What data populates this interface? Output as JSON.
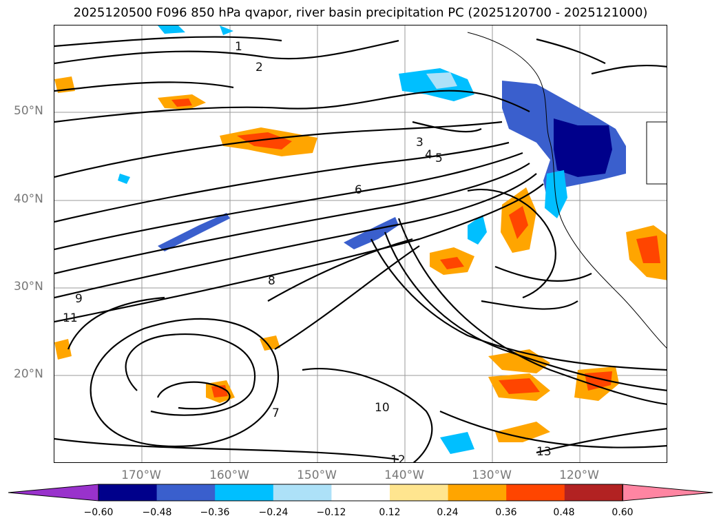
{
  "title": "2025120500 F096 850 hPa qvapor, river basin precipitation PC (2025120700 - 2025121000)",
  "latitude_labels": [
    "50°N",
    "40°N",
    "30°N",
    "20°N"
  ],
  "longitude_labels": [
    "170°W",
    "160°W",
    "150°W",
    "140°W",
    "130°W",
    "120°W"
  ],
  "colorbar": {
    "ticks": [
      "−0.60",
      "−0.48",
      "−0.36",
      "−0.24",
      "−0.12",
      "0.12",
      "0.24",
      "0.36",
      "0.48",
      "0.60"
    ],
    "colors": [
      "#9932CC",
      "#00008B",
      "#3A5FCD",
      "#00BFFF",
      "#ADE1F8",
      "#FFFFFF",
      "#FFE58F",
      "#FFA500",
      "#FF4500",
      "#B22222",
      "#FF85A2"
    ]
  },
  "contour_labels": [
    "1",
    "2",
    "3",
    "4",
    "5",
    "6",
    "7",
    "8",
    "9",
    "10",
    "11",
    "12",
    "13"
  ],
  "colors": {
    "positive_orange": "#FFA500",
    "positive_red": "#FF4500",
    "negative_blue": "#00BFFF",
    "negative_darkblue": "#00008B",
    "negative_medblue": "#3A5FCD",
    "grid": "#888888",
    "contour": "#000000"
  }
}
